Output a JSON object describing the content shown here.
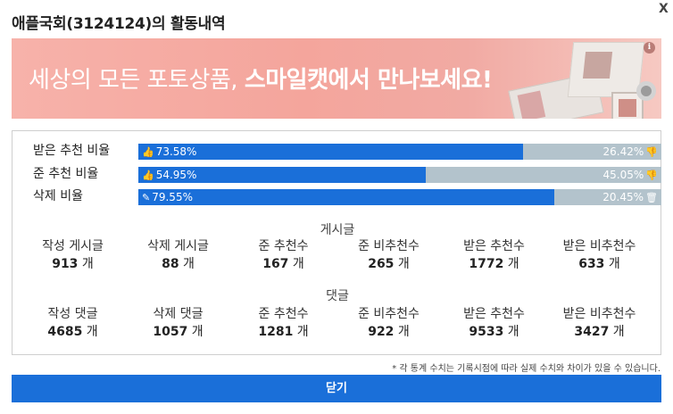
{
  "header": {
    "title": "애플국회(3124124)의 활동내역",
    "close_glyph": "X"
  },
  "banner": {
    "text_plain": "세상의 모든 포토상품, ",
    "text_bold": "스마일캣에서 만나보세요!",
    "info_glyph": "i"
  },
  "rates": [
    {
      "label": "받은 추천 비율",
      "left_value": "73.58%",
      "right_value": "26.42%",
      "fill_percent": 73.58,
      "left_icon": "thumbs-up-icon",
      "right_icon": "thumbs-down-icon"
    },
    {
      "label": "준 추천 비율",
      "left_value": "54.95%",
      "right_value": "45.05%",
      "fill_percent": 54.95,
      "left_icon": "thumbs-up-icon",
      "right_icon": "thumbs-down-icon"
    },
    {
      "label": "삭제 비율",
      "left_value": "79.55%",
      "right_value": "20.45%",
      "fill_percent": 79.55,
      "left_icon": "edit-icon",
      "right_icon": "trash-icon"
    }
  ],
  "posts": {
    "title": "게시글",
    "unit": "개",
    "items": [
      {
        "label": "작성 게시글",
        "value": "913"
      },
      {
        "label": "삭제 게시글",
        "value": "88"
      },
      {
        "label": "준 추천수",
        "value": "167"
      },
      {
        "label": "준 비추천수",
        "value": "265"
      },
      {
        "label": "받은 추천수",
        "value": "1772"
      },
      {
        "label": "받은 비추천수",
        "value": "633"
      }
    ]
  },
  "comments": {
    "title": "댓글",
    "unit": "개",
    "items": [
      {
        "label": "작성 댓글",
        "value": "4685"
      },
      {
        "label": "삭제 댓글",
        "value": "1057"
      },
      {
        "label": "준 추천수",
        "value": "1281"
      },
      {
        "label": "준 비추천수",
        "value": "922"
      },
      {
        "label": "받은 추천수",
        "value": "9533"
      },
      {
        "label": "받은 비추천수",
        "value": "3427"
      }
    ]
  },
  "footnote": "* 각 통계 수치는 기록시점에 따라 실제 수치와 차이가 있을 수 있습니다.",
  "close_button_label": "닫기",
  "colors": {
    "accent": "#1a6fd9",
    "bar_remainder": "#b3c3cc",
    "banner": "#f4a59c"
  }
}
